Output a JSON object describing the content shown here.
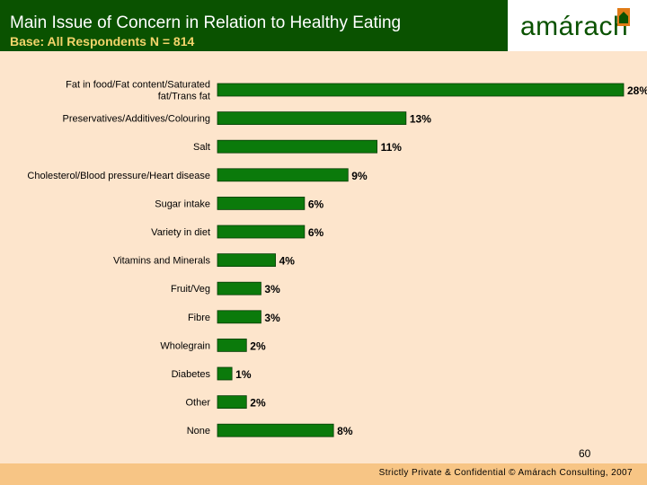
{
  "header": {
    "title": "Main Issue of Concern in Relation to Healthy Eating",
    "subtitle": "Base: All Respondents N = 814",
    "logo_text": "amárach"
  },
  "colors": {
    "header_green": "#0a5200",
    "subtitle_yellow": "#f3d46b",
    "bar_green": "#0b7a0b",
    "background": "#fde5cc",
    "footer_orange": "#f7c585",
    "logo_orange": "#e07b16"
  },
  "chart_data": {
    "type": "bar",
    "orientation": "horizontal",
    "title": "Main Issue of Concern in Relation to Healthy Eating",
    "categories": [
      "Fat in food/Fat content/Saturated fat/Trans fat",
      "Preservatives/Additives/Colouring",
      "Salt",
      "Cholesterol/Blood pressure/Heart disease",
      "Sugar intake",
      "Variety in diet",
      "Vitamins and Minerals",
      "Fruit/Veg",
      "Fibre",
      "Wholegrain",
      "Diabetes",
      "Other",
      "None"
    ],
    "category_lines": [
      [
        "Fat in food/Fat content/Saturated",
        "fat/Trans fat"
      ],
      [
        "Preservatives/Additives/Colouring"
      ],
      [
        "Salt"
      ],
      [
        "Cholesterol/Blood pressure/Heart disease"
      ],
      [
        "Sugar intake"
      ],
      [
        "Variety in diet"
      ],
      [
        "Vitamins and Minerals"
      ],
      [
        "Fruit/Veg"
      ],
      [
        "Fibre"
      ],
      [
        "Wholegrain"
      ],
      [
        "Diabetes"
      ],
      [
        "Other"
      ],
      [
        "None"
      ]
    ],
    "values": [
      28,
      13,
      11,
      9,
      6,
      6,
      4,
      3,
      3,
      2,
      1,
      2,
      8
    ],
    "value_labels": [
      "28%",
      "13%",
      "11%",
      "9%",
      "6%",
      "6%",
      "4%",
      "3%",
      "3%",
      "2%",
      "1%",
      "2%",
      "8%"
    ],
    "xlim": [
      0,
      28
    ],
    "unit": "%",
    "grid": false,
    "legend": "none"
  },
  "footer": {
    "page_number": "60",
    "text": "Strictly Private & Confidential © Amárach Consulting, 2007"
  }
}
